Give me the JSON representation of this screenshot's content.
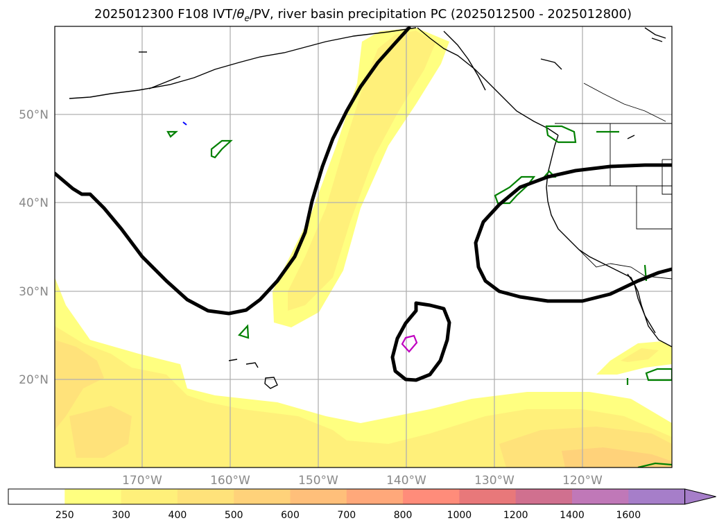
{
  "title_prefix": "2025012300 F108 IVT/",
  "title_theta": "θ",
  "title_sub": "e",
  "title_suffix": "/PV, river basin precipitation PC (2025012500 - 2025012800)",
  "map": {
    "lat_labels": [
      "50°N",
      "40°N",
      "30°N",
      "20°N"
    ],
    "lon_labels": [
      "170°W",
      "160°W",
      "150°W",
      "140°W",
      "130°W",
      "120°W"
    ]
  },
  "colorbar": {
    "levels": [
      "250",
      "300",
      "400",
      "500",
      "600",
      "700",
      "800",
      "1000",
      "1200",
      "1400",
      "1600"
    ],
    "colors": [
      "#ffffff",
      "#ffff80",
      "#fff07a",
      "#ffe27a",
      "#ffd27a",
      "#ffbf7a",
      "#ffa87a",
      "#ff8c7a",
      "#e8787a",
      "#d0708f",
      "#c078b8",
      "#a67ec9"
    ]
  }
}
